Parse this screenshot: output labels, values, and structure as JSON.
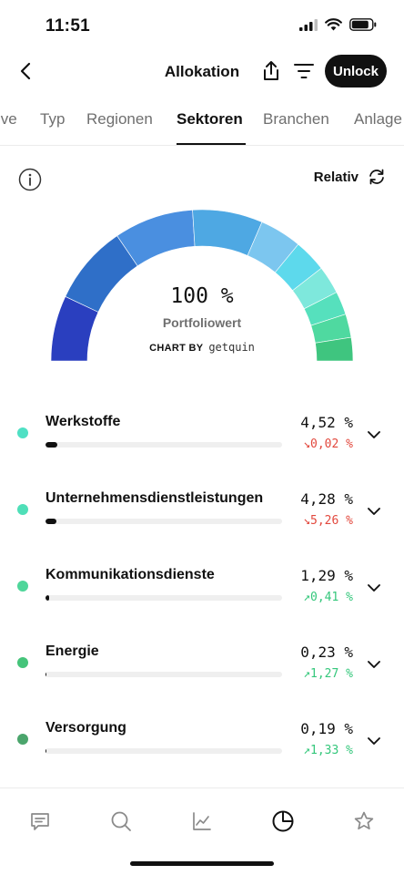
{
  "status_bar": {
    "time": "11:51"
  },
  "nav": {
    "title": "Allokation",
    "unlock_label": "Unlock"
  },
  "tabs": [
    {
      "label": "ive"
    },
    {
      "label": "Typ"
    },
    {
      "label": "Regionen"
    },
    {
      "label": "Sektoren",
      "active": true
    },
    {
      "label": "Branchen"
    },
    {
      "label": "Anlage"
    }
  ],
  "toolbar": {
    "relativ_label": "Relativ"
  },
  "gauge": {
    "value": "100 %",
    "subtitle": "Portfoliowert",
    "chart_by_label": "CHART BY",
    "chart_by_brand": "getquin",
    "segment_colors": [
      "#2a3fbf",
      "#2f6fc8",
      "#4a8fe0",
      "#4ea8e3",
      "#7cc6ef",
      "#5dd9ec",
      "#7ee8dc",
      "#56e0bd",
      "#4fd9a0",
      "#3fc57f"
    ]
  },
  "sectors": [
    {
      "name": "Werkstoffe",
      "percent": "4,52 %",
      "share": 0.0452,
      "change": "↘0,02 %",
      "trend": "down",
      "dot_color": "#4fe0c4"
    },
    {
      "name": "Unternehmensdienstleistungen",
      "percent": "4,28 %",
      "share": 0.0428,
      "change": "↘5,26 %",
      "trend": "down",
      "dot_color": "#4fdfb8"
    },
    {
      "name": "Kommunikationsdienste",
      "percent": "1,29 %",
      "share": 0.0129,
      "change": "↗0,41 %",
      "trend": "up",
      "dot_color": "#4fd69a"
    },
    {
      "name": "Energie",
      "percent": "0,23 %",
      "share": 0.0023,
      "change": "↗1,27 %",
      "trend": "up",
      "dot_color": "#45c47a"
    },
    {
      "name": "Versorgung",
      "percent": "0,19 %",
      "share": 0.0019,
      "change": "↗1,33 %",
      "trend": "up",
      "dot_color": "#4ba56c"
    }
  ],
  "bottom_nav": [
    {
      "icon": "feed-icon"
    },
    {
      "icon": "search-icon"
    },
    {
      "icon": "chart-icon"
    },
    {
      "icon": "pie-chart-icon",
      "active": true
    },
    {
      "icon": "star-icon"
    }
  ],
  "colors": {
    "down": "#e2483d",
    "up": "#34c77b",
    "accent": "#111111"
  }
}
